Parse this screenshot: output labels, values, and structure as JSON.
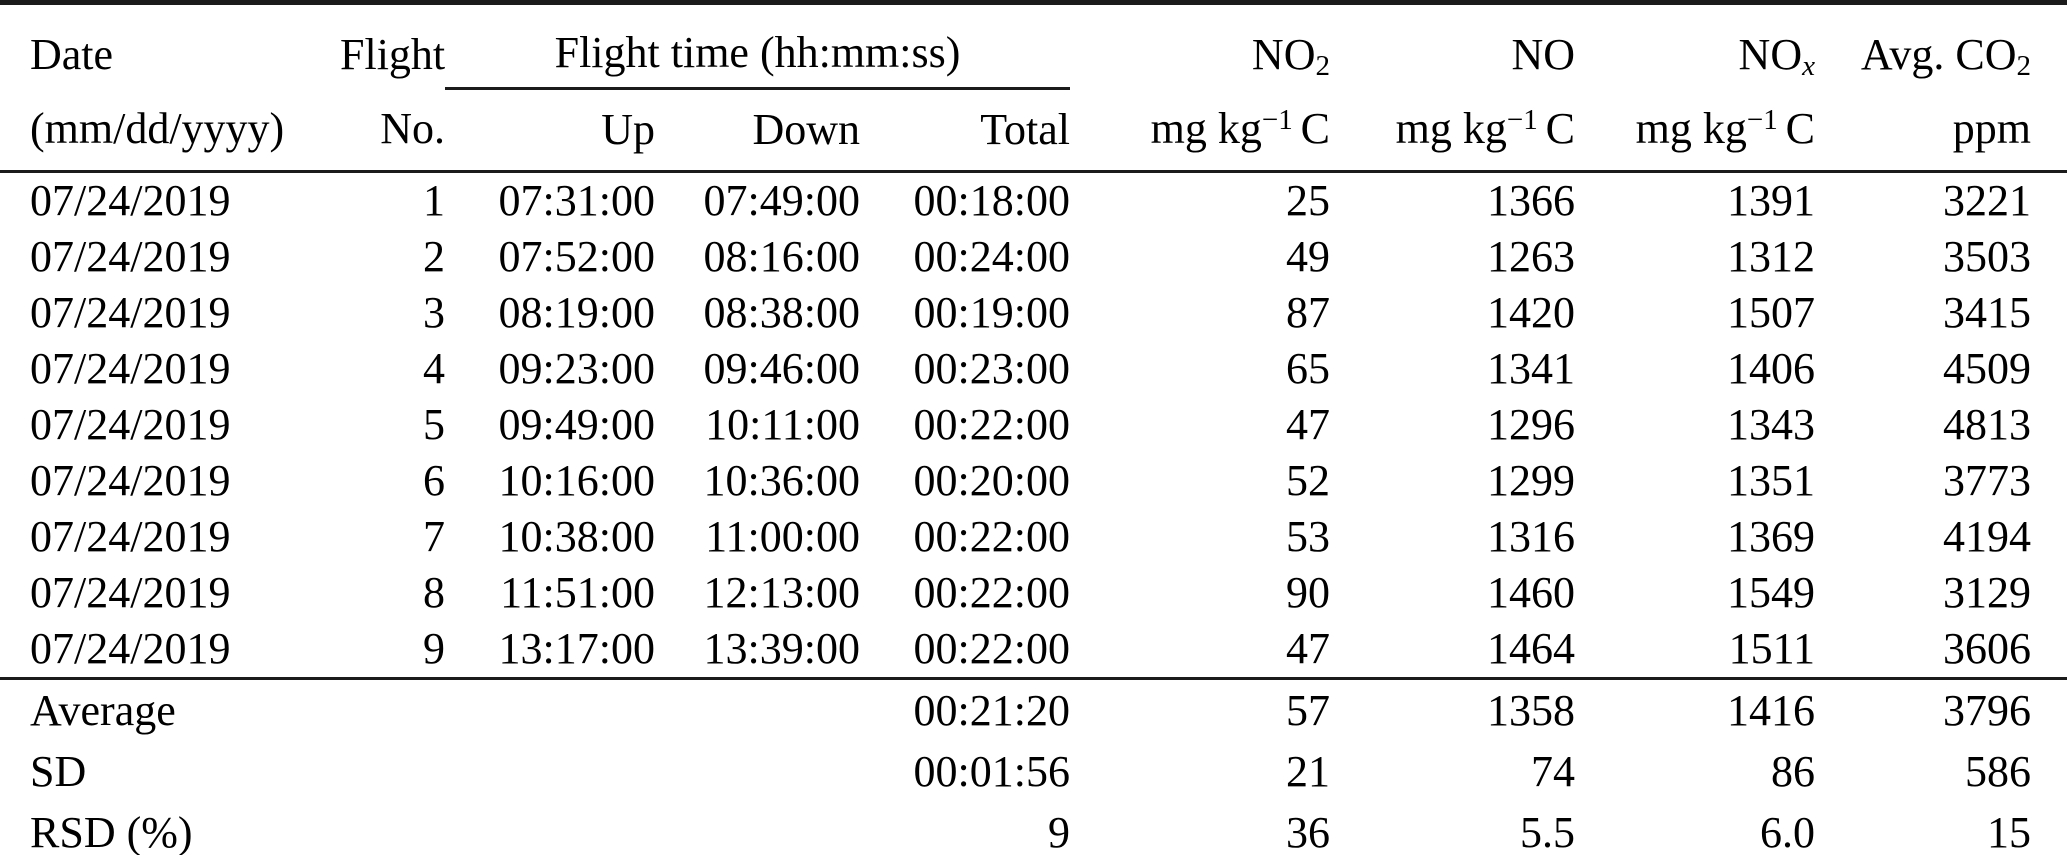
{
  "table": {
    "header": {
      "date_line1": "Date",
      "date_line2": "(mm/dd/yyyy)",
      "flight_line1": "Flight",
      "flight_line2": "No.",
      "flight_time_group": "Flight time (hh:mm:ss)",
      "up": "Up",
      "down": "Down",
      "total": "Total",
      "no2_base": "NO",
      "no2_sub": "2",
      "no_label": "NO",
      "nox_base": "NO",
      "nox_sub": "x",
      "co2_base": "Avg. CO",
      "co2_sub": "2",
      "unit_prefix": "mg kg",
      "unit_sup": "−1",
      "unit_suffix": "C",
      "ppm_unit": "ppm"
    },
    "rows": [
      {
        "date": "07/24/2019",
        "flight_no": "1",
        "up": "07:31:00",
        "down": "07:49:00",
        "total": "00:18:00",
        "no2": "25",
        "no": "1366",
        "nox": "1391",
        "co2": "3221"
      },
      {
        "date": "07/24/2019",
        "flight_no": "2",
        "up": "07:52:00",
        "down": "08:16:00",
        "total": "00:24:00",
        "no2": "49",
        "no": "1263",
        "nox": "1312",
        "co2": "3503"
      },
      {
        "date": "07/24/2019",
        "flight_no": "3",
        "up": "08:19:00",
        "down": "08:38:00",
        "total": "00:19:00",
        "no2": "87",
        "no": "1420",
        "nox": "1507",
        "co2": "3415"
      },
      {
        "date": "07/24/2019",
        "flight_no": "4",
        "up": "09:23:00",
        "down": "09:46:00",
        "total": "00:23:00",
        "no2": "65",
        "no": "1341",
        "nox": "1406",
        "co2": "4509"
      },
      {
        "date": "07/24/2019",
        "flight_no": "5",
        "up": "09:49:00",
        "down": "10:11:00",
        "total": "00:22:00",
        "no2": "47",
        "no": "1296",
        "nox": "1343",
        "co2": "4813"
      },
      {
        "date": "07/24/2019",
        "flight_no": "6",
        "up": "10:16:00",
        "down": "10:36:00",
        "total": "00:20:00",
        "no2": "52",
        "no": "1299",
        "nox": "1351",
        "co2": "3773"
      },
      {
        "date": "07/24/2019",
        "flight_no": "7",
        "up": "10:38:00",
        "down": "11:00:00",
        "total": "00:22:00",
        "no2": "53",
        "no": "1316",
        "nox": "1369",
        "co2": "4194"
      },
      {
        "date": "07/24/2019",
        "flight_no": "8",
        "up": "11:51:00",
        "down": "12:13:00",
        "total": "00:22:00",
        "no2": "90",
        "no": "1460",
        "nox": "1549",
        "co2": "3129"
      },
      {
        "date": "07/24/2019",
        "flight_no": "9",
        "up": "13:17:00",
        "down": "13:39:00",
        "total": "00:22:00",
        "no2": "47",
        "no": "1464",
        "nox": "1511",
        "co2": "3606"
      }
    ],
    "summary": [
      {
        "label": "Average",
        "total": "00:21:20",
        "no2": "57",
        "no": "1358",
        "nox": "1416",
        "co2": "3796"
      },
      {
        "label": "SD",
        "total": "00:01:56",
        "no2": "21",
        "no": "74",
        "nox": "86",
        "co2": "586"
      },
      {
        "label": "RSD (%)",
        "total": "9",
        "no2": "36",
        "no": "5.5",
        "nox": "6.0",
        "co2": "15"
      }
    ]
  },
  "colors": {
    "text": "#000000",
    "background": "#ffffff",
    "rule": "#1b1b1b"
  }
}
